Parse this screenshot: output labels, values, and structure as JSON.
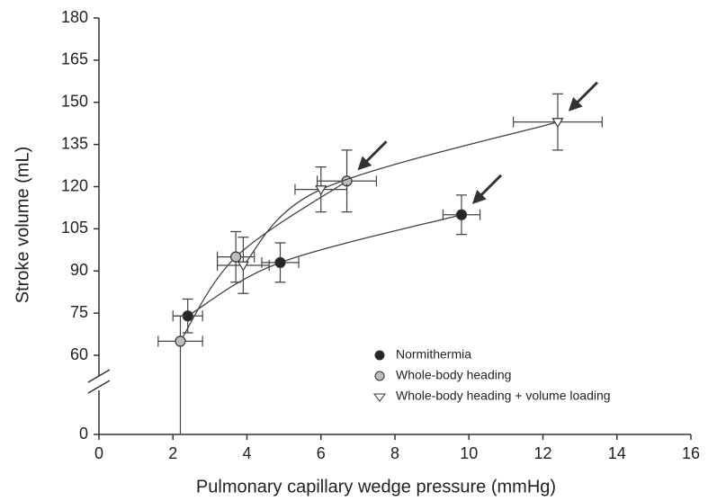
{
  "chart_data": {
    "type": "scatter",
    "x_label": "Pulmonary capillary wedge pressure (mmHg)",
    "y_label": "Stroke volume (mL)",
    "xlim": [
      0,
      16
    ],
    "xticks": [
      0,
      2,
      4,
      6,
      8,
      10,
      12,
      14,
      16
    ],
    "ylim": [
      0,
      180
    ],
    "yticks": [
      0,
      60,
      75,
      90,
      105,
      120,
      135,
      150,
      165,
      180
    ],
    "axis_break": true,
    "series": [
      {
        "name": "Normithermia",
        "marker": "circle",
        "color": "#262626",
        "x": [
          2.4,
          4.9,
          9.8
        ],
        "values": [
          74,
          93,
          110
        ],
        "xerr": [
          0.4,
          0.5,
          0.5
        ],
        "yerr": [
          6,
          7,
          7
        ]
      },
      {
        "name": "Whole-body heading",
        "marker": "circle",
        "color": "#bdbdbd",
        "x": [
          2.2,
          3.7,
          6.7
        ],
        "values": [
          65,
          95,
          122
        ],
        "xerr": [
          0.6,
          0.5,
          0.8
        ],
        "yerr": [
          9,
          9,
          11
        ]
      },
      {
        "name": "Whole-body heading + volume loading",
        "marker": "triangle",
        "color": "#ffffff",
        "x": [
          3.9,
          6.0,
          12.4
        ],
        "values": [
          92,
          119,
          143
        ],
        "xerr": [
          0.7,
          0.7,
          1.2
        ],
        "yerr": [
          10,
          8,
          10
        ]
      }
    ]
  }
}
